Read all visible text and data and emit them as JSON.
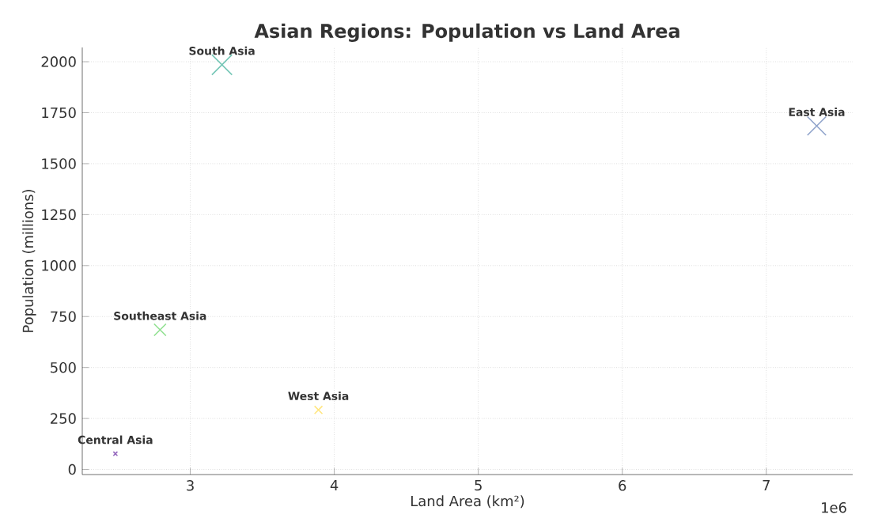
{
  "chart_data": {
    "type": "bubble",
    "title": "Asian Regions: Population vs Land Area",
    "xlabel": "Land Area (km²)",
    "ylabel": "Population (millions)",
    "x": [
      2.48,
      2.79,
      3.22,
      3.89,
      7.35
    ],
    "values": [
      77,
      685,
      1985,
      292,
      1685
    ],
    "sizes": [
      0.04,
      0.35,
      1,
      0.15,
      0.85
    ],
    "colors": [
      "#9467bd",
      "#90e090",
      "#76c7b7",
      "#ffe680",
      "#8fa3cb"
    ],
    "marker": "cross",
    "grid": true,
    "xlim": [
      2.25,
      7.6
    ],
    "ylim": [
      -25,
      2070
    ],
    "xticks": [
      3,
      4,
      5,
      6,
      7
    ],
    "yticks": [
      0,
      250,
      500,
      750,
      1000,
      1250,
      1500,
      1750,
      2000
    ],
    "annotations": [
      {
        "text": "Central Asia",
        "x": 2.48,
        "y": 77
      },
      {
        "text": "Southeast Asia",
        "x": 2.79,
        "y": 685
      },
      {
        "text": "South Asia",
        "x": 3.22,
        "y": 1985
      },
      {
        "text": "West Asia",
        "x": 3.89,
        "y": 292
      },
      {
        "text": "East Asia",
        "x": 7.35,
        "y": 1685
      },
      "1e6"
    ]
  }
}
